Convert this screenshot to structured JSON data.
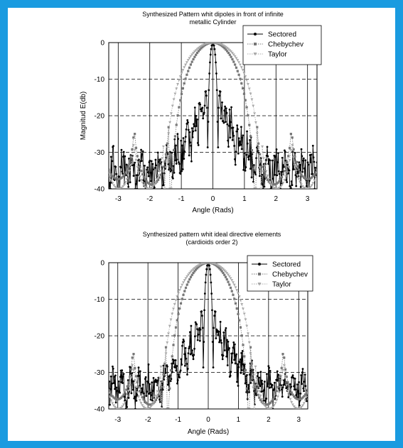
{
  "chart_data": [
    {
      "type": "line",
      "title": "Synthesized Pattern whit dipoles in front of infinite metallic Cylinder",
      "title_lines": [
        "Synthesized Pattern whit dipoles in front of infinite",
        "metallic Cylinder"
      ],
      "xlabel": "Angle (Rads)",
      "ylabel": "Magnitud E(db)",
      "xlim": [
        -3.3,
        3.3
      ],
      "ylim": [
        -40,
        0
      ],
      "xticks": [
        -3,
        -2,
        -1,
        0,
        1,
        2,
        3
      ],
      "yticks": [
        0,
        -10,
        -20,
        -30,
        -40
      ],
      "grid": true,
      "legend_position": "top-right",
      "series": [
        {
          "name": "Sectored",
          "style": "solid",
          "marker": "circle",
          "color": "#000000",
          "points": 361
        },
        {
          "name": "Chebychev",
          "style": "dotted",
          "marker": "square",
          "color": "#777777",
          "points": 160
        },
        {
          "name": "Taylor",
          "style": "dotted",
          "marker": "triangle",
          "color": "#aaaaaa",
          "points": 160
        }
      ]
    },
    {
      "type": "line",
      "title": "Synthesized pattern whit ideal directive elements (cardioids order 2)",
      "title_lines": [
        "Synthesized pattern whit ideal directive elements",
        "(cardioids order 2)"
      ],
      "xlabel": "Angle (Rads)",
      "ylabel": "",
      "xlim": [
        -3.3,
        3.3
      ],
      "ylim": [
        -40,
        0
      ],
      "xticks": [
        -3,
        -2,
        -1,
        0,
        1,
        2,
        3
      ],
      "yticks": [
        0,
        -10,
        -20,
        -30,
        -40
      ],
      "grid": true,
      "legend_position": "top-right",
      "series": [
        {
          "name": "Sectored",
          "style": "solid",
          "marker": "circle",
          "color": "#000000",
          "points": 361
        },
        {
          "name": "Chebychev",
          "style": "dotted",
          "marker": "square",
          "color": "#777777",
          "points": 160
        },
        {
          "name": "Taylor",
          "style": "dotted",
          "marker": "triangle",
          "color": "#aaaaaa",
          "points": 160
        }
      ]
    }
  ]
}
